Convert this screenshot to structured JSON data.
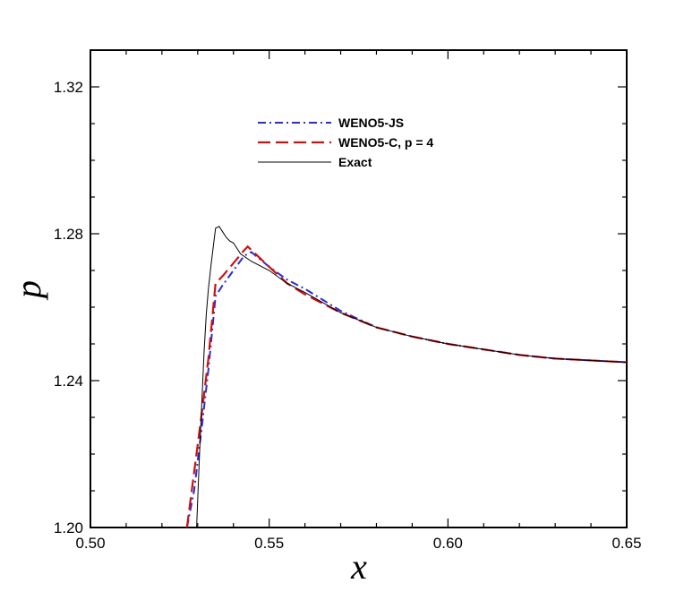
{
  "chart_data": {
    "type": "line",
    "title": "",
    "xlabel": "x",
    "ylabel": "p",
    "xlim": [
      0.5,
      0.65
    ],
    "ylim": [
      1.2,
      1.33
    ],
    "xticks": [
      "0.50",
      "0.55",
      "0.60",
      "0.65"
    ],
    "yticks": [
      "1.20",
      "1.24",
      "1.28",
      "1.32"
    ],
    "grid": false,
    "legend_position": "top-center",
    "series": [
      {
        "name": "WENO5-JS",
        "color": "#2b2bdb",
        "dash": "dash-dot",
        "x": [
          0.527,
          0.529,
          0.531,
          0.533,
          0.535,
          0.537,
          0.54,
          0.543,
          0.545,
          0.55,
          0.555,
          0.56,
          0.57,
          0.58,
          0.59,
          0.6,
          0.61,
          0.62,
          0.63,
          0.64,
          0.65
        ],
        "y": [
          1.2,
          1.21,
          1.226,
          1.243,
          1.263,
          1.266,
          1.27,
          1.274,
          1.275,
          1.271,
          1.2675,
          1.265,
          1.259,
          1.2545,
          1.252,
          1.25,
          1.2485,
          1.247,
          1.246,
          1.2455,
          1.245
        ]
      },
      {
        "name": "WENO5-C, p = 4",
        "color": "#cc1111",
        "dash": "dashed",
        "x": [
          0.527,
          0.529,
          0.531,
          0.533,
          0.535,
          0.537,
          0.54,
          0.543,
          0.544,
          0.55,
          0.555,
          0.56,
          0.57,
          0.58,
          0.59,
          0.6,
          0.61,
          0.62,
          0.63,
          0.64,
          0.65
        ],
        "y": [
          1.2,
          1.215,
          1.23,
          1.246,
          1.2665,
          1.2685,
          1.272,
          1.2755,
          1.2765,
          1.271,
          1.2665,
          1.2635,
          1.2585,
          1.2545,
          1.252,
          1.25,
          1.2485,
          1.247,
          1.246,
          1.2455,
          1.245
        ]
      },
      {
        "name": "Exact",
        "color": "#000000",
        "dash": "solid",
        "x": [
          0.5297,
          0.5301,
          0.5306,
          0.5312,
          0.5318,
          0.5324,
          0.533,
          0.5338,
          0.535,
          0.536,
          0.537,
          0.538,
          0.539,
          0.54,
          0.541,
          0.542,
          0.545,
          0.55,
          0.555,
          0.56,
          0.57,
          0.58,
          0.59,
          0.6,
          0.61,
          0.62,
          0.63,
          0.64,
          0.65
        ],
        "y": [
          1.2,
          1.21,
          1.222,
          1.235,
          1.248,
          1.258,
          1.265,
          1.272,
          1.2815,
          1.282,
          1.2805,
          1.279,
          1.278,
          1.2775,
          1.276,
          1.2745,
          1.2725,
          1.27,
          1.2665,
          1.264,
          1.2585,
          1.2545,
          1.252,
          1.25,
          1.2485,
          1.247,
          1.246,
          1.2455,
          1.245
        ]
      }
    ]
  }
}
